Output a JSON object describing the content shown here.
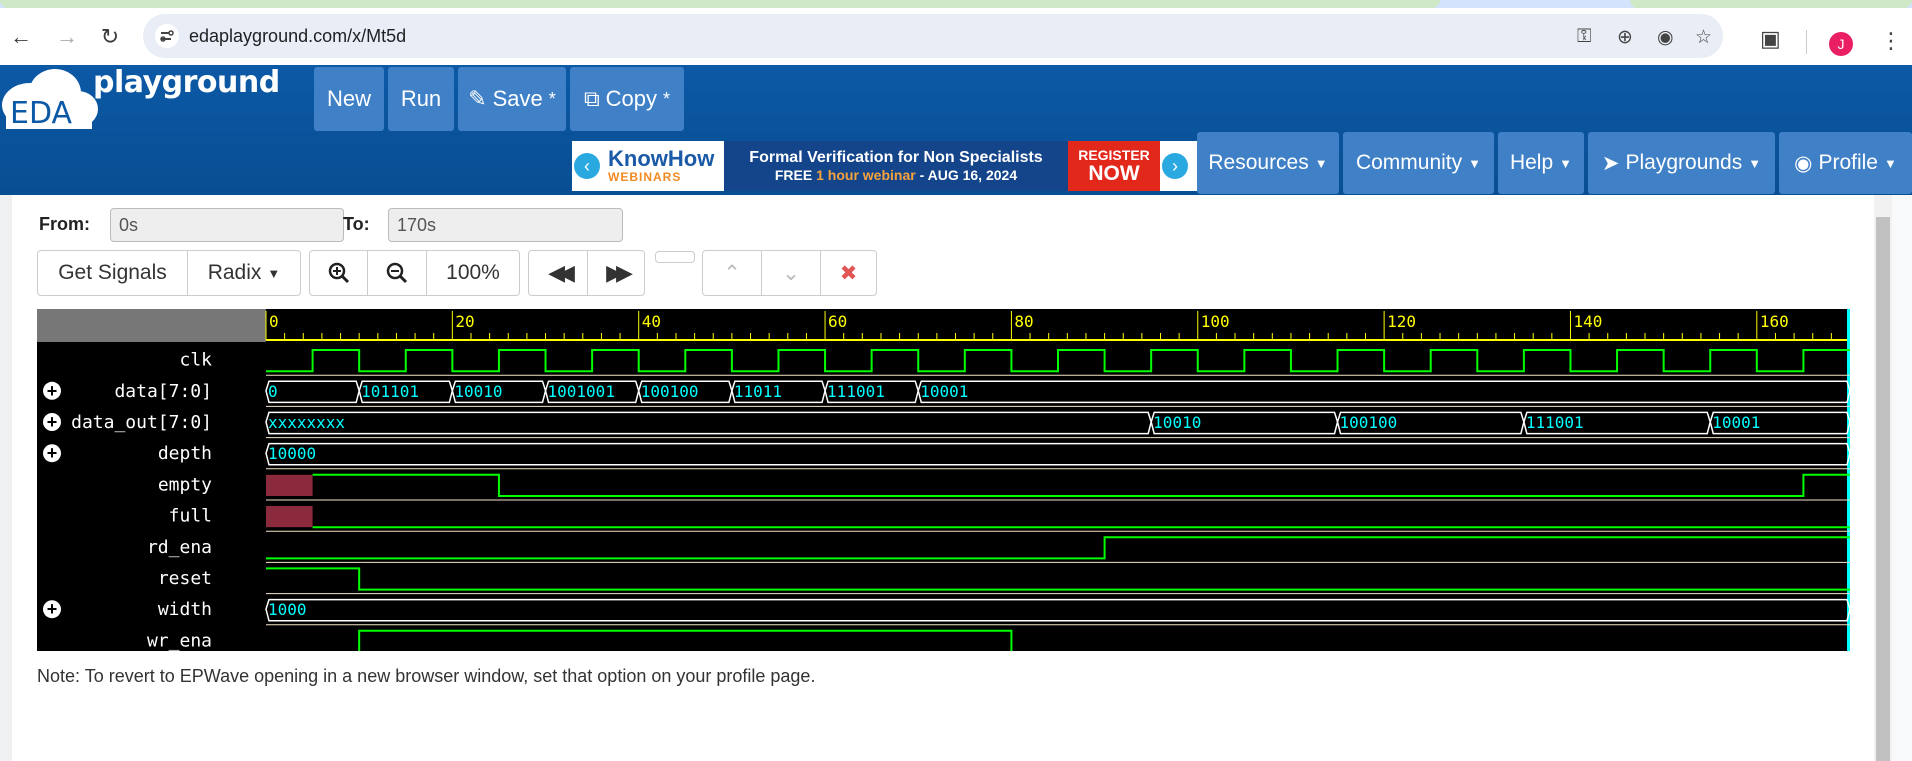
{
  "browser": {
    "url": "edaplayground.com/x/Mt5d",
    "avatar_letter": "J"
  },
  "header": {
    "logo_text": "playground",
    "logo_badge": "EDA",
    "buttons": {
      "new": "New",
      "run": "Run",
      "save": "Save",
      "save_mark": "*",
      "copy": "Copy",
      "copy_mark": "*"
    },
    "banner": {
      "brand_top": "KnowHow",
      "brand_bottom": "WEBINARS",
      "headline": "Formal Verification for Non Specialists",
      "sub_free": "FREE",
      "sub_hour": "1 hour webinar",
      "sub_date": "-  AUG 16, 2024",
      "register": "REGISTER",
      "now": "NOW"
    },
    "menus": [
      "Resources",
      "Community",
      "Help",
      "Playgrounds",
      "Profile"
    ]
  },
  "wave_controls": {
    "from_label": "From:",
    "from_value": "0s",
    "to_label": "To:",
    "to_value": "170s",
    "get_signals": "Get Signals",
    "radix": "Radix",
    "zoom_level": "100%"
  },
  "waveform": {
    "time_ticks": [
      "0",
      "20",
      "40",
      "60",
      "80",
      "100",
      "120",
      "140",
      "160"
    ],
    "tick_max": 170,
    "signals": [
      {
        "name": "clk",
        "expandable": false,
        "type": "clock",
        "period": 10,
        "first_rise": 5
      },
      {
        "name": "data[7:0]",
        "expandable": true,
        "type": "bus",
        "segments": [
          {
            "start": 0,
            "end": 10,
            "value": "0"
          },
          {
            "start": 10,
            "end": 20,
            "value": "101101"
          },
          {
            "start": 20,
            "end": 30,
            "value": "10010"
          },
          {
            "start": 30,
            "end": 40,
            "value": "1001001"
          },
          {
            "start": 40,
            "end": 50,
            "value": "100100"
          },
          {
            "start": 50,
            "end": 60,
            "value": "11011"
          },
          {
            "start": 60,
            "end": 70,
            "value": "111001"
          },
          {
            "start": 70,
            "end": 170,
            "value": "10001"
          }
        ]
      },
      {
        "name": "data_out[7:0]",
        "expandable": true,
        "type": "bus",
        "segments": [
          {
            "start": 0,
            "end": 95,
            "value": "xxxxxxxx"
          },
          {
            "start": 95,
            "end": 115,
            "value": "10010"
          },
          {
            "start": 115,
            "end": 135,
            "value": "100100"
          },
          {
            "start": 135,
            "end": 155,
            "value": "111001"
          },
          {
            "start": 155,
            "end": 170,
            "value": "10001"
          }
        ]
      },
      {
        "name": "depth",
        "expandable": true,
        "type": "bus",
        "segments": [
          {
            "start": 0,
            "end": 170,
            "value": "10000"
          }
        ]
      },
      {
        "name": "empty",
        "expandable": false,
        "type": "bit",
        "unknown_until": 5,
        "edges": [
          {
            "t": 5,
            "v": 1
          },
          {
            "t": 25,
            "v": 0
          },
          {
            "t": 165,
            "v": 1
          }
        ]
      },
      {
        "name": "full",
        "expandable": false,
        "type": "bit",
        "unknown_until": 5,
        "edges": [
          {
            "t": 5,
            "v": 0
          }
        ]
      },
      {
        "name": "rd_ena",
        "expandable": false,
        "type": "bit",
        "edges": [
          {
            "t": 0,
            "v": 0
          },
          {
            "t": 90,
            "v": 1
          }
        ]
      },
      {
        "name": "reset",
        "expandable": false,
        "type": "bit",
        "edges": [
          {
            "t": 0,
            "v": 1
          },
          {
            "t": 10,
            "v": 0
          }
        ]
      },
      {
        "name": "width",
        "expandable": true,
        "type": "bus",
        "segments": [
          {
            "start": 0,
            "end": 170,
            "value": "1000"
          }
        ]
      },
      {
        "name": "wr_ena",
        "expandable": false,
        "type": "bit",
        "edges": [
          {
            "t": 0,
            "v": 0
          },
          {
            "t": 10,
            "v": 1
          },
          {
            "t": 80,
            "v": 0
          }
        ]
      }
    ]
  },
  "note": "Note: To revert to EPWave opening in a new browser window, set that option on your profile page."
}
